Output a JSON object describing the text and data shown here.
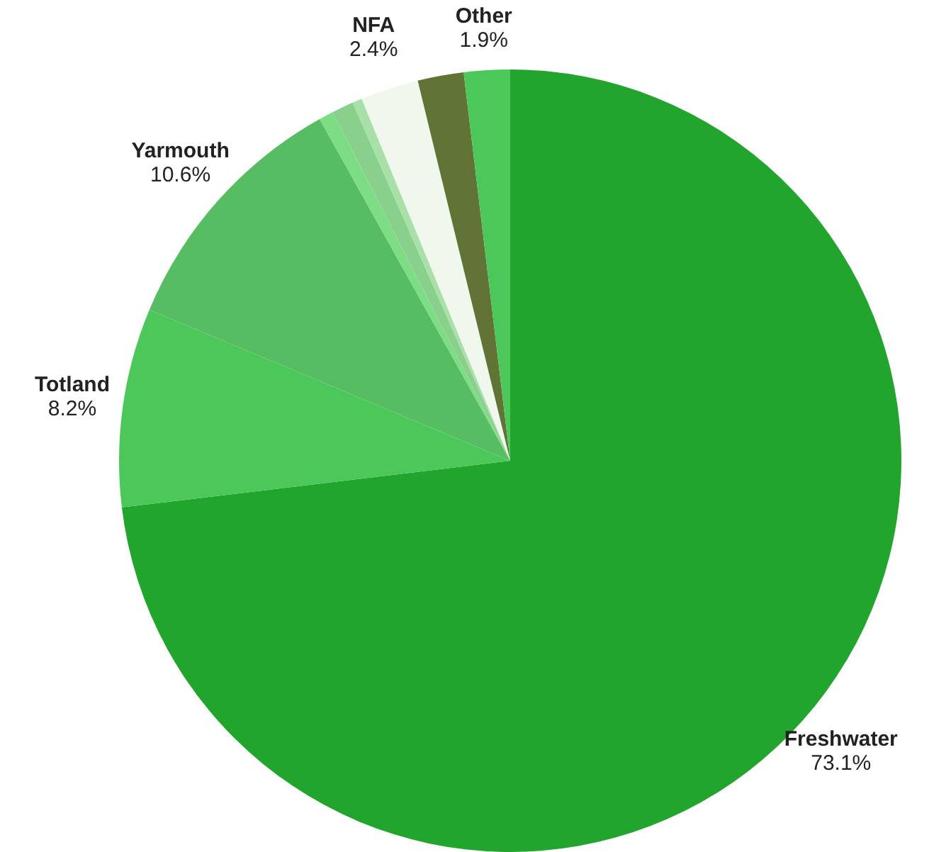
{
  "chart_data": {
    "type": "pie",
    "categories": [
      "Freshwater",
      "Totland",
      "Yarmouth",
      null,
      null,
      null,
      "NFA",
      null,
      "Other"
    ],
    "values": [
      73.1,
      8.2,
      10.6,
      0.6,
      0.9,
      0.4,
      2.4,
      1.9,
      1.9
    ],
    "value_labels": [
      "73.1%",
      "8.2%",
      "10.6%",
      null,
      null,
      null,
      "2.4%",
      null,
      "1.9%"
    ],
    "colors": [
      "#21a52d",
      "#4cc85a",
      "#56bd62",
      "#7ddd85",
      "#88d08c",
      "#a8e0a8",
      "#f0f7ec",
      "#617435",
      "#4cc85a"
    ]
  }
}
